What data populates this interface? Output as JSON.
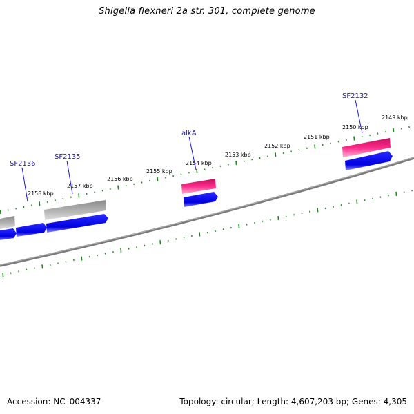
{
  "title": "Shigella flexneri 2a str. 301, complete genome",
  "footer": {
    "accession": "Accession: NC_004337",
    "summary": "Topology: circular; Length: 4,607,203 bp; Genes: 4,305"
  },
  "colors": {
    "backbone": "#808080",
    "tick": "#1a8a1a",
    "forward_gene": "#0000ee",
    "rna_gene": "#ee2288",
    "pseudo_gene": "#a0a0a0",
    "label": "#1a1aa8"
  },
  "kbp_labels": [
    "2149 kbp",
    "2150 kbp",
    "2151 kbp",
    "2152 kbp",
    "2153 kbp",
    "2154 kbp",
    "2155 kbp",
    "2156 kbp",
    "2157 kbp",
    "2158 kbp"
  ],
  "gene_labels": [
    "SF2132",
    "alkA",
    "SF2135",
    "SF2136"
  ]
}
